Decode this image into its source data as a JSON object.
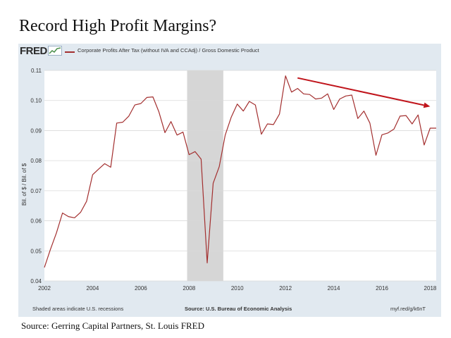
{
  "page": {
    "title": "Record High Profit Margins?",
    "caption": "Source: Gerring Capital Partners, St. Louis FRED"
  },
  "fred": {
    "logo_text": "FRED",
    "footer_left": "Shaded areas indicate U.S. recessions",
    "footer_center": "Source: U.S. Bureau of Economic Analysis",
    "footer_right": "myf.red/g/k6nT"
  },
  "colors": {
    "series": "#a32f2f",
    "arrow": "#c0141b",
    "recession": "#d6d6d6",
    "plot_bg": "#ffffff",
    "panel_bg": "#e1e9f0",
    "grid": "#d9d9d9"
  },
  "chart_data": {
    "type": "line",
    "title": "",
    "xlabel": "",
    "ylabel": "Bil. of $ / Bil. of $",
    "xlim": [
      2002.0,
      2018.25
    ],
    "ylim": [
      0.04,
      0.11
    ],
    "grid": "horizontal",
    "legend": "top-left",
    "x_ticks": [
      2002,
      2004,
      2006,
      2008,
      2010,
      2012,
      2014,
      2016,
      2018
    ],
    "y_ticks": [
      0.04,
      0.05,
      0.06,
      0.07,
      0.08,
      0.09,
      0.1,
      0.11
    ],
    "y_tick_labels": [
      "0.04",
      "0.05",
      "0.06",
      "0.07",
      "0.08",
      "0.09",
      "0.10",
      "0.11"
    ],
    "recessions": [
      [
        2007.92,
        2009.42
      ]
    ],
    "trend_arrow": {
      "from": [
        2012.5,
        0.1075
      ],
      "to": [
        2018.0,
        0.098
      ]
    },
    "series": [
      {
        "name": "Corporate Profits After Tax (without IVA and CCAdj) / Gross Domestic Product",
        "x": [
          2002.0,
          2002.25,
          2002.5,
          2002.75,
          2003.0,
          2003.25,
          2003.5,
          2003.75,
          2004.0,
          2004.25,
          2004.5,
          2004.75,
          2005.0,
          2005.25,
          2005.5,
          2005.75,
          2006.0,
          2006.25,
          2006.5,
          2006.75,
          2007.0,
          2007.25,
          2007.5,
          2007.75,
          2008.0,
          2008.25,
          2008.5,
          2008.75,
          2009.0,
          2009.25,
          2009.5,
          2009.75,
          2010.0,
          2010.25,
          2010.5,
          2010.75,
          2011.0,
          2011.25,
          2011.5,
          2011.75,
          2012.0,
          2012.25,
          2012.5,
          2012.75,
          2013.0,
          2013.25,
          2013.5,
          2013.75,
          2014.0,
          2014.25,
          2014.5,
          2014.75,
          2015.0,
          2015.25,
          2015.5,
          2015.75,
          2016.0,
          2016.25,
          2016.5,
          2016.75,
          2017.0,
          2017.25,
          2017.5,
          2017.75,
          2018.0,
          2018.25
        ],
        "y": [
          0.0445,
          0.0505,
          0.056,
          0.0626,
          0.0614,
          0.061,
          0.0628,
          0.0665,
          0.0753,
          0.0772,
          0.079,
          0.0778,
          0.0925,
          0.0928,
          0.0948,
          0.0985,
          0.099,
          0.101,
          0.1012,
          0.0962,
          0.0893,
          0.093,
          0.0885,
          0.0895,
          0.082,
          0.083,
          0.0805,
          0.046,
          0.0725,
          0.078,
          0.0885,
          0.0945,
          0.0988,
          0.0965,
          0.0997,
          0.0985,
          0.0888,
          0.0922,
          0.092,
          0.0955,
          0.1082,
          0.1028,
          0.104,
          0.1022,
          0.102,
          0.1005,
          0.1008,
          0.1022,
          0.097,
          0.1005,
          0.1015,
          0.1018,
          0.094,
          0.0965,
          0.0925,
          0.0818,
          0.0886,
          0.0892,
          0.0905,
          0.0948,
          0.095,
          0.0922,
          0.0952,
          0.0852,
          0.0908,
          0.0908
        ]
      }
    ]
  }
}
